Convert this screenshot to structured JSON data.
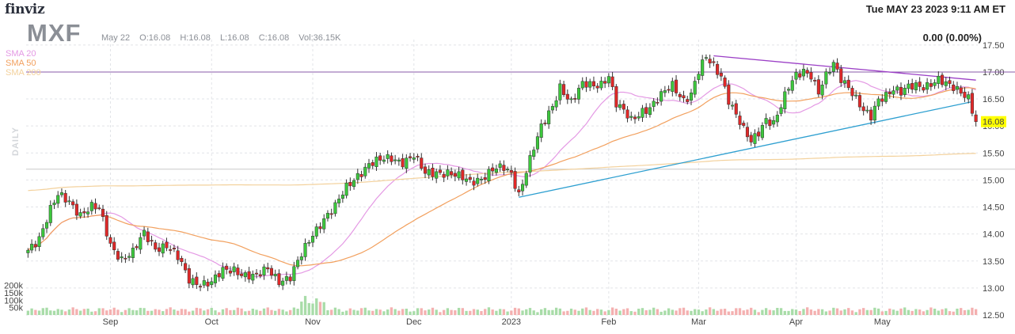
{
  "header": {
    "logo": "finviz",
    "datetime": "Tue MAY 23 2023 9:11 AM ET",
    "ticker": "MXF",
    "bar_date": "May 22",
    "open": "O:16.08",
    "high": "H:16.08",
    "low": "L:16.08",
    "close": "C:16.08",
    "volume": "Vol:36.15K",
    "change": "0.00 (0.00%)",
    "timeframe": "DAILY",
    "last_price_label": "16.08"
  },
  "legend": [
    {
      "label": "SMA 20",
      "color": "#e499e4"
    },
    {
      "label": "SMA 50",
      "color": "#f2a05e"
    },
    {
      "label": "SMA 200",
      "color": "#f3d19c"
    }
  ],
  "colors": {
    "up": "#3cc83c",
    "down": "#e02828",
    "up_volume": "#a8dca8",
    "down_volume": "#f4b0b0",
    "trendline": "#2d9fd0",
    "resistance": "#9b3fc6",
    "price_tag": "#ffff00"
  },
  "chart_data": {
    "type": "candlestick",
    "title": "",
    "ylim": [
      12.5,
      17.6
    ],
    "y_ticks": [
      12.5,
      13.0,
      13.5,
      14.0,
      14.5,
      15.0,
      15.5,
      16.0,
      16.5,
      17.0,
      17.5
    ],
    "x_tick_labels": [
      "Sep",
      "Oct",
      "Nov",
      "Dec",
      "2023",
      "Feb",
      "Mar",
      "Apr",
      "May"
    ],
    "x_tick_indices": [
      22,
      49,
      76,
      103,
      129,
      155,
      179,
      205,
      228
    ],
    "volume_ticks": [
      "200k",
      "150k",
      "100k",
      "50k"
    ],
    "volume_tick_values": [
      200000,
      150000,
      100000,
      50000
    ],
    "horizontal_levels": [
      17.0,
      15.2
    ],
    "trendlines": [
      {
        "name": "support",
        "from": [
          131,
          14.68
        ],
        "to": [
          252,
          16.45
        ]
      },
      {
        "name": "resistance",
        "from": [
          183,
          17.3
        ],
        "to": [
          253,
          16.85
        ]
      }
    ],
    "waypoints": [
      [
        0,
        13.7
      ],
      [
        3,
        13.95
      ],
      [
        6,
        14.45
      ],
      [
        8,
        14.7
      ],
      [
        11,
        14.6
      ],
      [
        14,
        14.38
      ],
      [
        17,
        14.5
      ],
      [
        19,
        14.45
      ],
      [
        22,
        13.8
      ],
      [
        25,
        13.55
      ],
      [
        28,
        13.65
      ],
      [
        31,
        14.0
      ],
      [
        34,
        13.75
      ],
      [
        37,
        13.8
      ],
      [
        40,
        13.55
      ],
      [
        43,
        13.15
      ],
      [
        46,
        13.1
      ],
      [
        49,
        13.1
      ],
      [
        52,
        13.3
      ],
      [
        55,
        13.35
      ],
      [
        58,
        13.25
      ],
      [
        61,
        13.2
      ],
      [
        64,
        13.35
      ],
      [
        67,
        13.15
      ],
      [
        70,
        13.2
      ],
      [
        73,
        13.6
      ],
      [
        76,
        14.0
      ],
      [
        79,
        14.3
      ],
      [
        82,
        14.5
      ],
      [
        85,
        14.85
      ],
      [
        88,
        15.1
      ],
      [
        91,
        15.3
      ],
      [
        94,
        15.35
      ],
      [
        97,
        15.4
      ],
      [
        100,
        15.35
      ],
      [
        103,
        15.45
      ],
      [
        106,
        15.1
      ],
      [
        109,
        15.15
      ],
      [
        112,
        15.15
      ],
      [
        115,
        15.05
      ],
      [
        118,
        14.95
      ],
      [
        121,
        15.05
      ],
      [
        124,
        15.2
      ],
      [
        127,
        15.2
      ],
      [
        129,
        15.1
      ],
      [
        131,
        14.75
      ],
      [
        133,
        15.2
      ],
      [
        135,
        15.6
      ],
      [
        137,
        15.95
      ],
      [
        140,
        16.35
      ],
      [
        142,
        16.75
      ],
      [
        145,
        16.45
      ],
      [
        148,
        16.75
      ],
      [
        151,
        16.75
      ],
      [
        153,
        16.8
      ],
      [
        155,
        16.95
      ],
      [
        157,
        16.4
      ],
      [
        159,
        16.25
      ],
      [
        161,
        16.1
      ],
      [
        164,
        16.3
      ],
      [
        166,
        16.35
      ],
      [
        169,
        16.55
      ],
      [
        172,
        16.75
      ],
      [
        175,
        16.5
      ],
      [
        177,
        16.6
      ],
      [
        179,
        17.0
      ],
      [
        181,
        17.25
      ],
      [
        183,
        17.1
      ],
      [
        185,
        16.95
      ],
      [
        187,
        16.5
      ],
      [
        189,
        16.2
      ],
      [
        191,
        15.9
      ],
      [
        193,
        15.7
      ],
      [
        195,
        15.9
      ],
      [
        197,
        16.15
      ],
      [
        199,
        16.05
      ],
      [
        201,
        16.35
      ],
      [
        203,
        16.7
      ],
      [
        205,
        16.95
      ],
      [
        207,
        17.05
      ],
      [
        209,
        16.95
      ],
      [
        211,
        16.6
      ],
      [
        213,
        16.9
      ],
      [
        215,
        17.15
      ],
      [
        217,
        16.9
      ],
      [
        219,
        16.75
      ],
      [
        221,
        16.5
      ],
      [
        223,
        16.25
      ],
      [
        225,
        16.15
      ],
      [
        227,
        16.5
      ],
      [
        229,
        16.6
      ],
      [
        231,
        16.7
      ],
      [
        233,
        16.6
      ],
      [
        235,
        16.7
      ],
      [
        237,
        16.75
      ],
      [
        239,
        16.75
      ],
      [
        241,
        16.8
      ],
      [
        243,
        16.85
      ],
      [
        245,
        16.75
      ],
      [
        247,
        16.7
      ],
      [
        249,
        16.65
      ],
      [
        251,
        16.55
      ],
      [
        253,
        16.08
      ]
    ],
    "last_close": 16.08
  }
}
